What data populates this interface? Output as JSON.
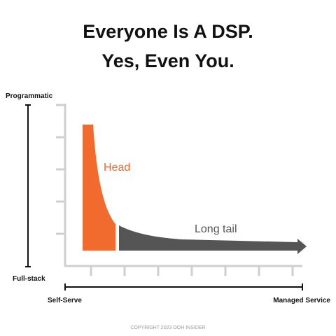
{
  "header": {
    "title_line1": "Everyone Is A DSP.",
    "title_line2": "Yes, Even You."
  },
  "y_axis": {
    "top_label": "Programmatic",
    "bottom_label": "Full-stack"
  },
  "x_axis": {
    "left_label": "Self-Serve",
    "right_label": "Managed Service"
  },
  "curve": {
    "head_label": "Head",
    "tail_label": "Long tail"
  },
  "footer": {
    "copyright": "COPYRIGHT 2023 OOH INSIDER"
  }
}
